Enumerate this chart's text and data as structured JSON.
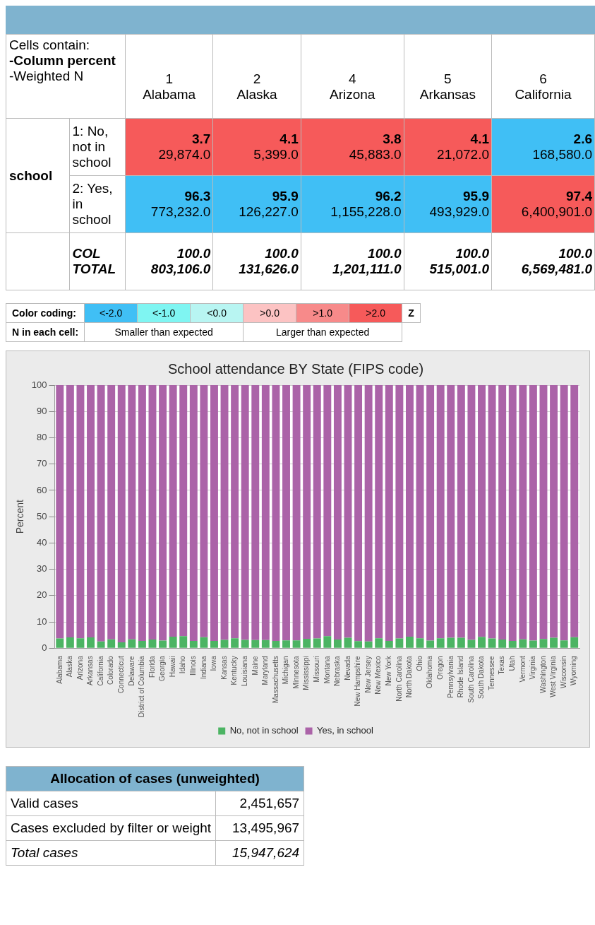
{
  "chart_data": [
    {
      "type": "other",
      "annotations": [
        "Cells contain:",
        "-Column percent",
        "-Weighted N",
        "school"
      ],
      "categories": [
        "1 Alabama",
        "2 Alaska",
        "4 Arizona",
        "5 Arkansas",
        "6 California"
      ],
      "y_categories": [
        "1: No, not in school",
        "2: Yes, in school",
        "COL TOTAL"
      ],
      "cell_labels": [
        [
          "3.7 29,874.0",
          "4.1 5,399.0",
          "3.8 45,883.0",
          "4.1 21,072.0",
          "2.6 168,580.0"
        ],
        [
          "96.3 773,232.0",
          "95.9 126,227.0",
          "96.2 1,155,228.0",
          "95.9 493,929.0",
          "97.4 6,400,901.0"
        ],
        [
          "100.0 803,106.0",
          "100.0 131,626.0",
          "100.0 1,201,111.0",
          "100.0 515,001.0",
          "100.0 6,569,481.0"
        ]
      ],
      "colors": [
        [
          "#f65a5a",
          "#f65a5a",
          "#f65a5a",
          "#f65a5a",
          "#40bff5"
        ],
        [
          "#40bff5",
          "#40bff5",
          "#40bff5",
          "#40bff5",
          "#f65a5a"
        ],
        [
          "#ffffff",
          "#ffffff",
          "#ffffff",
          "#ffffff",
          "#ffffff"
        ]
      ]
    },
    {
      "type": "other",
      "title": "Color coding:",
      "categories": [
        "<-2.0",
        "<-1.0",
        "<0.0",
        ">0.0",
        ">1.0",
        ">2.0"
      ],
      "colors": [
        "#40bff5",
        "#7ff5f2",
        "#b8f5f2",
        "#fcc3c3",
        "#f78a8a",
        "#f65a5a"
      ],
      "annotations": [
        "Z",
        "N in each cell:",
        "Smaller than expected",
        "Larger than expected"
      ]
    },
    {
      "type": "bar",
      "stacked": true,
      "title": "School attendance BY State (FIPS code)",
      "ylabel": "Percent",
      "legend": "bottom",
      "grid": "y",
      "ylim": [
        0,
        100
      ],
      "yticks": [
        0,
        10,
        20,
        30,
        40,
        50,
        60,
        70,
        80,
        90,
        100
      ],
      "categories": [
        "Alabama",
        "Alaska",
        "Arizona",
        "Arkansas",
        "California",
        "Colorado",
        "Connecticut",
        "Delaware",
        "District of Columbia",
        "Florida",
        "Georgia",
        "Hawaii",
        "Idaho",
        "Illinois",
        "Indiana",
        "Iowa",
        "Kansas",
        "Kentucky",
        "Louisiana",
        "Maine",
        "Maryland",
        "Massachusetts",
        "Michigan",
        "Minnesota",
        "Mississippi",
        "Missouri",
        "Montana",
        "Nebraska",
        "Nevada",
        "New Hampshire",
        "New Jersey",
        "New Mexico",
        "New York",
        "North Carolina",
        "North Dakota",
        "Ohio",
        "Oklahoma",
        "Oregon",
        "Pennsylvania",
        "Rhode Island",
        "South Carolina",
        "South Dakota",
        "Tennessee",
        "Texas",
        "Utah",
        "Vermont",
        "Virginia",
        "Washington",
        "West Virginia",
        "Wisconsin",
        "Wyoming"
      ],
      "series": [
        {
          "name": "No, not in school",
          "color": "#4cb463",
          "values": [
            3.7,
            4.1,
            3.8,
            4.1,
            2.6,
            3.4,
            2.2,
            3.4,
            2.8,
            3.3,
            2.9,
            4.4,
            4.6,
            2.8,
            4.2,
            2.8,
            3.2,
            3.8,
            3.2,
            3.1,
            3.1,
            2.8,
            3.0,
            3.0,
            3.6,
            3.7,
            4.6,
            3.3,
            4.0,
            2.7,
            2.6,
            3.8,
            2.8,
            3.7,
            4.4,
            3.8,
            2.9,
            3.8,
            4.0,
            4.0,
            3.2,
            4.3,
            3.7,
            3.3,
            2.8,
            3.4,
            2.9,
            3.5,
            4.0,
            3.0,
            4.2
          ]
        },
        {
          "name": "Yes, in school",
          "color": "#ab63a8",
          "values": [
            96.3,
            95.9,
            96.2,
            95.9,
            97.4,
            96.6,
            97.8,
            96.6,
            97.2,
            96.7,
            97.1,
            95.6,
            95.4,
            97.2,
            95.8,
            97.2,
            96.8,
            96.2,
            96.8,
            96.9,
            96.9,
            97.2,
            97.0,
            97.0,
            96.4,
            96.3,
            95.4,
            96.7,
            96.0,
            97.3,
            97.4,
            96.2,
            97.2,
            96.3,
            95.6,
            96.2,
            97.1,
            96.2,
            96.0,
            96.0,
            96.8,
            95.7,
            96.3,
            96.7,
            97.2,
            96.6,
            97.1,
            96.5,
            96.0,
            97.0,
            95.8
          ]
        }
      ]
    },
    {
      "type": "other",
      "title": "Allocation of cases (unweighted)",
      "categories": [
        "Valid cases",
        "Cases excluded by filter or weight",
        "Total cases"
      ],
      "value_labels": [
        "2,451,657",
        "13,495,967",
        "15,947,624"
      ]
    }
  ]
}
